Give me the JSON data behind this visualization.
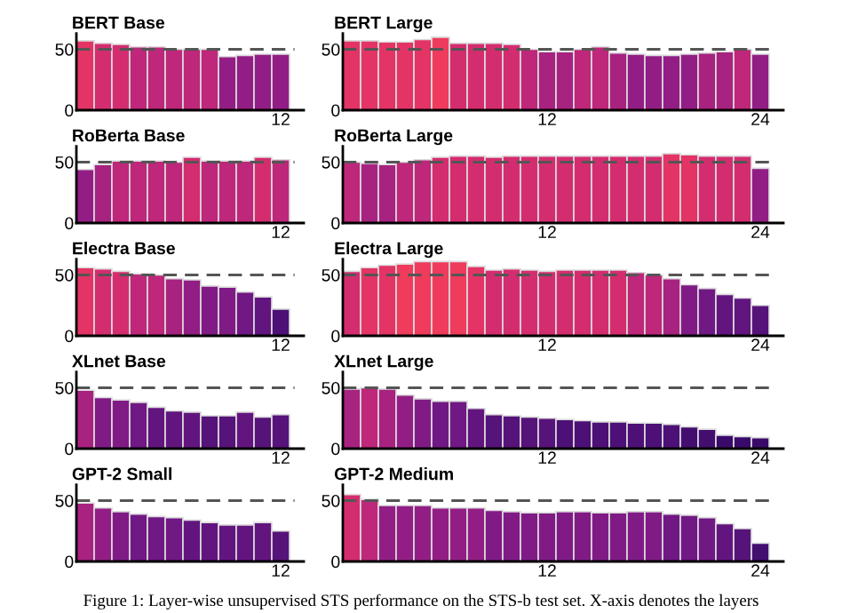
{
  "chart_data": [
    {
      "type": "bar",
      "title": "BERT Base",
      "categories": [
        null,
        null,
        null,
        null,
        null,
        null,
        null,
        null,
        null,
        null,
        null,
        "12"
      ],
      "values": [
        57,
        55,
        54,
        52,
        52,
        50,
        50,
        50,
        44,
        45,
        46,
        46
      ],
      "colors": [
        "#e33465",
        "#d42d6f",
        "#d42d6f",
        "#be277a",
        "#be277a",
        "#be277a",
        "#be277a",
        "#be277a",
        "#921e85",
        "#921e85",
        "#921e85",
        "#921e85"
      ],
      "ylim": [
        0,
        63
      ],
      "yticks": [
        0,
        50
      ],
      "ref_lines": [
        {
          "axis": "y",
          "value": 50,
          "color": "#555555",
          "line_style": "dashed"
        }
      ]
    },
    {
      "type": "bar",
      "title": "BERT Large",
      "categories": [
        null,
        null,
        null,
        null,
        null,
        null,
        null,
        null,
        null,
        null,
        null,
        "12",
        null,
        null,
        null,
        null,
        null,
        null,
        null,
        null,
        null,
        null,
        null,
        "24"
      ],
      "values": [
        57,
        57,
        56,
        56,
        58,
        60,
        55,
        55,
        55,
        54,
        50,
        48,
        48,
        50,
        52,
        47,
        46,
        45,
        45,
        46,
        47,
        48,
        50,
        46
      ],
      "colors": [
        "#e33465",
        "#e33465",
        "#e33465",
        "#e33465",
        "#e33465",
        "#ef3b5c",
        "#d42d6f",
        "#d42d6f",
        "#d42d6f",
        "#d42d6f",
        "#be277a",
        "#a82280",
        "#a82280",
        "#be277a",
        "#be277a",
        "#a82280",
        "#921e85",
        "#921e85",
        "#921e85",
        "#921e85",
        "#a82280",
        "#a82280",
        "#be277a",
        "#921e85"
      ],
      "ylim": [
        0,
        63
      ],
      "yticks": [
        0,
        50
      ],
      "ref_lines": [
        {
          "axis": "y",
          "value": 50,
          "color": "#555555",
          "line_style": "dashed"
        }
      ]
    },
    {
      "type": "bar",
      "title": "RoBerta Base",
      "categories": [
        null,
        null,
        null,
        null,
        null,
        null,
        null,
        null,
        null,
        null,
        null,
        "12"
      ],
      "values": [
        44,
        48,
        51,
        51,
        51,
        50,
        54,
        51,
        51,
        51,
        54,
        52
      ],
      "colors": [
        "#921e85",
        "#a82280",
        "#be277a",
        "#be277a",
        "#be277a",
        "#be277a",
        "#d42d6f",
        "#be277a",
        "#be277a",
        "#be277a",
        "#d42d6f",
        "#be277a"
      ],
      "ylim": [
        0,
        63
      ],
      "yticks": [
        0,
        50
      ],
      "ref_lines": [
        {
          "axis": "y",
          "value": 50,
          "color": "#555555",
          "line_style": "dashed"
        }
      ]
    },
    {
      "type": "bar",
      "title": "RoBerta Large",
      "categories": [
        null,
        null,
        null,
        null,
        null,
        null,
        null,
        null,
        null,
        null,
        null,
        "12",
        null,
        null,
        null,
        null,
        null,
        null,
        null,
        null,
        null,
        null,
        null,
        "24"
      ],
      "values": [
        50,
        49,
        48,
        50,
        52,
        54,
        55,
        55,
        54,
        55,
        55,
        55,
        55,
        55,
        55,
        55,
        55,
        55,
        57,
        56,
        55,
        55,
        55,
        45
      ],
      "colors": [
        "#be277a",
        "#a82280",
        "#a82280",
        "#be277a",
        "#be277a",
        "#d42d6f",
        "#d42d6f",
        "#d42d6f",
        "#d42d6f",
        "#d42d6f",
        "#d42d6f",
        "#d42d6f",
        "#d42d6f",
        "#d42d6f",
        "#d42d6f",
        "#d42d6f",
        "#d42d6f",
        "#d42d6f",
        "#e33465",
        "#e33465",
        "#d42d6f",
        "#d42d6f",
        "#d42d6f",
        "#921e85"
      ],
      "ylim": [
        0,
        63
      ],
      "yticks": [
        0,
        50
      ],
      "ref_lines": [
        {
          "axis": "y",
          "value": 50,
          "color": "#555555",
          "line_style": "dashed"
        }
      ]
    },
    {
      "type": "bar",
      "title": "Electra Base",
      "categories": [
        null,
        null,
        null,
        null,
        null,
        null,
        null,
        null,
        null,
        null,
        null,
        "12"
      ],
      "values": [
        56,
        55,
        53,
        51,
        50,
        47,
        46,
        41,
        40,
        36,
        32,
        22
      ],
      "colors": [
        "#e33465",
        "#d42d6f",
        "#d42d6f",
        "#be277a",
        "#be277a",
        "#a82280",
        "#921e85",
        "#801b86",
        "#801b86",
        "#701884",
        "#62157f",
        "#4c1076"
      ],
      "ylim": [
        0,
        63
      ],
      "yticks": [
        0,
        50
      ],
      "ref_lines": [
        {
          "axis": "y",
          "value": 50,
          "color": "#555555",
          "line_style": "dashed"
        }
      ]
    },
    {
      "type": "bar",
      "title": "Electra Large",
      "categories": [
        null,
        null,
        null,
        null,
        null,
        null,
        null,
        null,
        null,
        null,
        null,
        "12",
        null,
        null,
        null,
        null,
        null,
        null,
        null,
        null,
        null,
        null,
        null,
        "24"
      ],
      "values": [
        53,
        56,
        58,
        59,
        61,
        61,
        61,
        57,
        54,
        55,
        54,
        53,
        54,
        54,
        54,
        54,
        52,
        50,
        47,
        42,
        39,
        34,
        31,
        25
      ],
      "colors": [
        "#d42d6f",
        "#e33465",
        "#e33465",
        "#ef3b5c",
        "#ef3b5c",
        "#ef3b5c",
        "#ef3b5c",
        "#e33465",
        "#d42d6f",
        "#d42d6f",
        "#d42d6f",
        "#d42d6f",
        "#d42d6f",
        "#d42d6f",
        "#d42d6f",
        "#d42d6f",
        "#be277a",
        "#be277a",
        "#a82280",
        "#801b86",
        "#701884",
        "#62157f",
        "#62157f",
        "#561379"
      ],
      "ylim": [
        0,
        63
      ],
      "yticks": [
        0,
        50
      ],
      "ref_lines": [
        {
          "axis": "y",
          "value": 50,
          "color": "#555555",
          "line_style": "dashed"
        }
      ]
    },
    {
      "type": "bar",
      "title": "XLnet Base",
      "categories": [
        null,
        null,
        null,
        null,
        null,
        null,
        null,
        null,
        null,
        null,
        null,
        "12"
      ],
      "values": [
        48,
        42,
        40,
        38,
        34,
        31,
        30,
        27,
        27,
        30,
        26,
        28
      ],
      "colors": [
        "#a82280",
        "#801b86",
        "#801b86",
        "#701884",
        "#62157f",
        "#62157f",
        "#62157f",
        "#561379",
        "#561379",
        "#62157f",
        "#561379",
        "#561379"
      ],
      "ylim": [
        0,
        63
      ],
      "yticks": [
        0,
        50
      ],
      "ref_lines": [
        {
          "axis": "y",
          "value": 50,
          "color": "#555555",
          "line_style": "dashed"
        }
      ]
    },
    {
      "type": "bar",
      "title": "XLnet Large",
      "categories": [
        null,
        null,
        null,
        null,
        null,
        null,
        null,
        null,
        null,
        null,
        null,
        "12",
        null,
        null,
        null,
        null,
        null,
        null,
        null,
        null,
        null,
        null,
        null,
        "24"
      ],
      "values": [
        49,
        50,
        49,
        44,
        41,
        39,
        39,
        33,
        28,
        27,
        26,
        25,
        24,
        23,
        22,
        22,
        21,
        21,
        20,
        18,
        16,
        11,
        10,
        9
      ],
      "colors": [
        "#a82280",
        "#be277a",
        "#a82280",
        "#921e85",
        "#801b86",
        "#701884",
        "#701884",
        "#62157f",
        "#561379",
        "#561379",
        "#561379",
        "#561379",
        "#4c1076",
        "#4c1076",
        "#4c1076",
        "#4c1076",
        "#4c1076",
        "#4c1076",
        "#4c1076",
        "#430e70",
        "#430e70",
        "#3a0a6a",
        "#3a0a6a",
        "#3a0a6a"
      ],
      "ylim": [
        0,
        63
      ],
      "yticks": [
        0,
        50
      ],
      "ref_lines": [
        {
          "axis": "y",
          "value": 50,
          "color": "#555555",
          "line_style": "dashed"
        }
      ]
    },
    {
      "type": "bar",
      "title": "GPT-2 Small",
      "categories": [
        null,
        null,
        null,
        null,
        null,
        null,
        null,
        null,
        null,
        null,
        null,
        "12"
      ],
      "values": [
        48,
        44,
        41,
        39,
        37,
        36,
        34,
        32,
        30,
        30,
        32,
        25
      ],
      "colors": [
        "#a82280",
        "#921e85",
        "#801b86",
        "#701884",
        "#701884",
        "#701884",
        "#62157f",
        "#62157f",
        "#62157f",
        "#62157f",
        "#62157f",
        "#561379"
      ],
      "ylim": [
        0,
        63
      ],
      "yticks": [
        0,
        50
      ],
      "ref_lines": [
        {
          "axis": "y",
          "value": 50,
          "color": "#555555",
          "line_style": "dashed"
        }
      ]
    },
    {
      "type": "bar",
      "title": "GPT-2 Medium",
      "categories": [
        null,
        null,
        null,
        null,
        null,
        null,
        null,
        null,
        null,
        null,
        null,
        "12",
        null,
        null,
        null,
        null,
        null,
        null,
        null,
        null,
        null,
        null,
        null,
        "24"
      ],
      "values": [
        55,
        51,
        46,
        46,
        46,
        44,
        44,
        44,
        42,
        41,
        40,
        40,
        41,
        41,
        40,
        40,
        41,
        41,
        39,
        38,
        36,
        31,
        27,
        15
      ],
      "colors": [
        "#d42d6f",
        "#be277a",
        "#921e85",
        "#921e85",
        "#921e85",
        "#921e85",
        "#921e85",
        "#921e85",
        "#801b86",
        "#801b86",
        "#801b86",
        "#801b86",
        "#801b86",
        "#801b86",
        "#801b86",
        "#801b86",
        "#801b86",
        "#801b86",
        "#701884",
        "#701884",
        "#701884",
        "#62157f",
        "#561379",
        "#430e70"
      ],
      "ylim": [
        0,
        63
      ],
      "yticks": [
        0,
        50
      ],
      "ref_lines": [
        {
          "axis": "y",
          "value": 50,
          "color": "#555555",
          "line_style": "dashed"
        }
      ],
      "annotations": [
        "Figure 1: Layer-wise unsupervised STS performance on the STS-b test set. X-axis denotes the layers"
      ]
    }
  ]
}
